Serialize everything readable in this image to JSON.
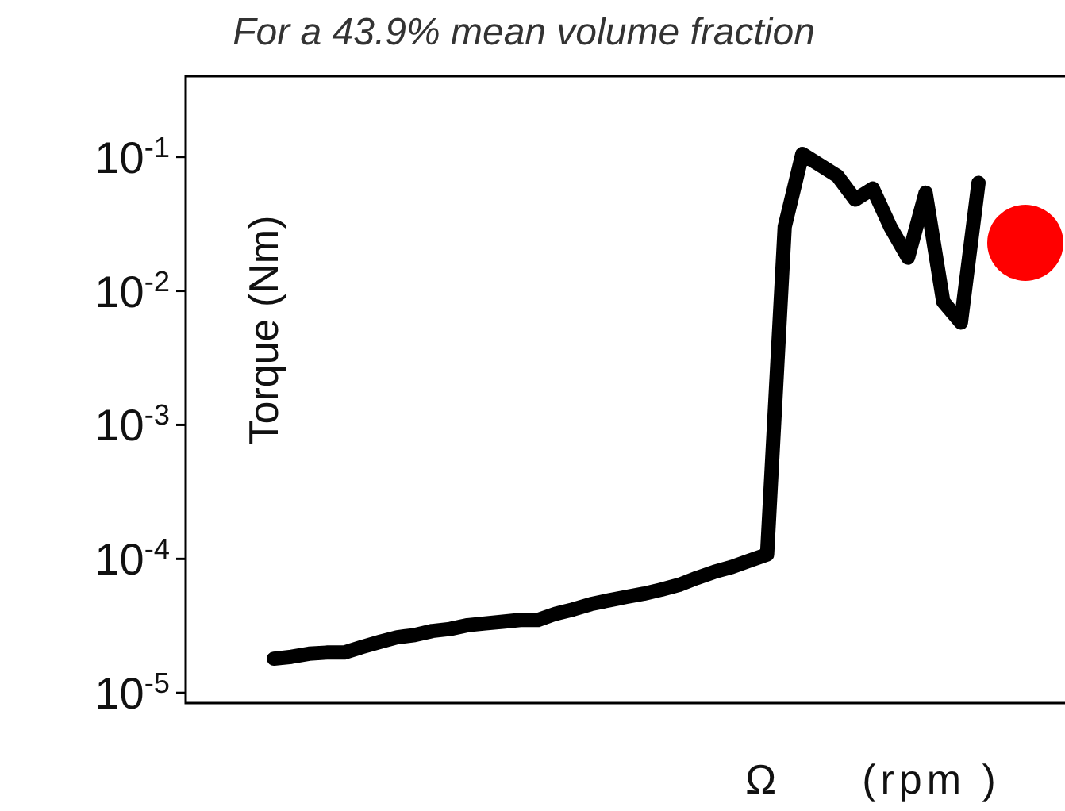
{
  "chart_data": {
    "type": "line",
    "title": "For a 43.9% mean volume fraction",
    "xlabel": "Ω     (rpm )",
    "ylabel": "Torque (Nm)",
    "log": "y",
    "tick_labels": "y",
    "grid": false,
    "marker": "none",
    "line_style": "solid",
    "categories": [
      null,
      null,
      null,
      null,
      null,
      null,
      null,
      null,
      null,
      null,
      null,
      null,
      null,
      null,
      null,
      null,
      null,
      null,
      null,
      null,
      null,
      null,
      null,
      null,
      null,
      null,
      null,
      null,
      null,
      null,
      null,
      null,
      null,
      null,
      null,
      null,
      null,
      null,
      null,
      null,
      null,
      null,
      null,
      null,
      null,
      null,
      null,
      null,
      null,
      null,
      null
    ],
    "ylim": [
      8.4e-06,
      0.4
    ],
    "yticks": [
      {
        "value": 0.1,
        "label": "10$^{-1}$"
      },
      {
        "value": 0.01,
        "label": "10$^{-2}$"
      },
      {
        "value": 0.001,
        "label": "10$^{-3}$"
      },
      {
        "value": 0.0001,
        "label": "10$^{-4}$"
      },
      {
        "value": 1e-05,
        "label": "10$^{-5}$"
      }
    ],
    "series": [
      {
        "color": "#000000",
        "values": [
          null,
          null,
          null,
          null,
          null,
          1.8e-05,
          1.86e-05,
          1.96e-05,
          2e-05,
          2e-05,
          2.2e-05,
          2.4e-05,
          2.6e-05,
          2.7e-05,
          2.9e-05,
          3e-05,
          3.2e-05,
          3.3e-05,
          3.4e-05,
          3.5e-05,
          3.5e-05,
          3.9e-05,
          4.2e-05,
          4.6e-05,
          4.9e-05,
          5.2e-05,
          5.5e-05,
          5.9e-05,
          6.4e-05,
          7.2e-05,
          8e-05,
          8.7e-05,
          9.7e-05,
          0.000108,
          0.03,
          0.105,
          0.087,
          0.072,
          0.048,
          0.058,
          0.03,
          0.0177,
          0.054,
          0.0083,
          0.0058,
          0.064,
          null,
          null,
          null,
          null,
          null
        ]
      }
    ]
  }
}
